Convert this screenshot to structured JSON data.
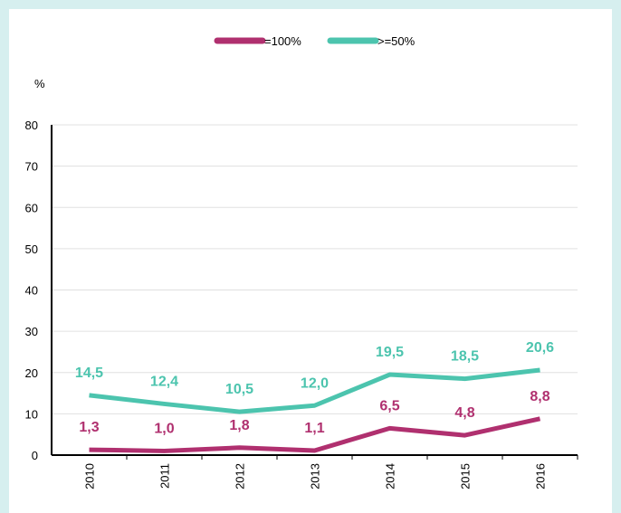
{
  "chart_data": {
    "type": "line",
    "y_label": "%",
    "categories": [
      "2010",
      "2011",
      "2012",
      "2013",
      "2014",
      "2015",
      "2016"
    ],
    "series": [
      {
        "name": "=100%",
        "color": "#b0306f",
        "values": [
          1.3,
          1.0,
          1.8,
          1.1,
          6.5,
          4.8,
          8.8
        ],
        "value_labels": [
          "1,3",
          "1,0",
          "1,8",
          "1,1",
          "6,5",
          "4,8",
          "8,8"
        ]
      },
      {
        "name": ">=50%",
        "color": "#4cc4ae",
        "values": [
          14.5,
          12.4,
          10.5,
          12.0,
          19.5,
          18.5,
          20.6
        ],
        "value_labels": [
          "14,5",
          "12,4",
          "10,5",
          "12,0",
          "19,5",
          "18,5",
          "20,6"
        ]
      }
    ],
    "ylim": [
      0,
      80
    ],
    "yticks": [
      0,
      10,
      20,
      30,
      40,
      50,
      60,
      70,
      80
    ],
    "grid": true,
    "legend": "top"
  }
}
